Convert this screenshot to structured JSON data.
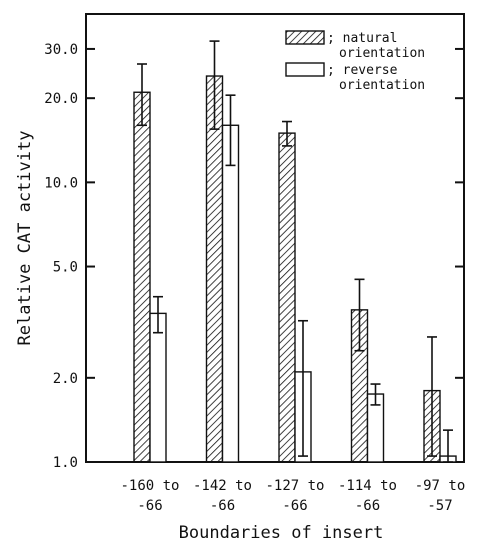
{
  "chart_data": {
    "type": "bar",
    "scale": "log",
    "ylim": [
      1.0,
      40.0
    ],
    "yticks": [
      1.0,
      2.0,
      5.0,
      10.0,
      20.0,
      30.0
    ],
    "ytick_labels": [
      "1.0",
      "2.0",
      "5.0",
      "10.0",
      "20.0",
      "30.0"
    ],
    "ylabel": "Relative CAT activity",
    "xlabel": "Boundaries of insert",
    "categories": [
      {
        "line1": "-160 to",
        "line2": "-66"
      },
      {
        "line1": "-142 to",
        "line2": "-66"
      },
      {
        "line1": "-127 to",
        "line2": "-66"
      },
      {
        "line1": "-114 to",
        "line2": "-66"
      },
      {
        "line1": "-97 to",
        "line2": "-57"
      }
    ],
    "series": [
      {
        "name": "; natural orientation",
        "legend_lines": [
          "; natural",
          "orientation"
        ],
        "pattern": "hatched",
        "values": [
          21.0,
          24.0,
          15.0,
          3.5,
          1.8
        ],
        "error_low": [
          16.0,
          15.5,
          13.5,
          2.5,
          1.05
        ],
        "error_high": [
          26.5,
          32.0,
          16.5,
          4.5,
          2.8
        ]
      },
      {
        "name": "; reverse orientation",
        "legend_lines": [
          "; reverse",
          "orientation"
        ],
        "pattern": "open",
        "values": [
          3.4,
          16.0,
          2.1,
          1.75,
          1.05
        ],
        "error_low": [
          2.9,
          11.5,
          1.05,
          1.6,
          1.0
        ],
        "error_high": [
          3.9,
          20.5,
          3.2,
          1.9,
          1.3
        ]
      }
    ]
  }
}
